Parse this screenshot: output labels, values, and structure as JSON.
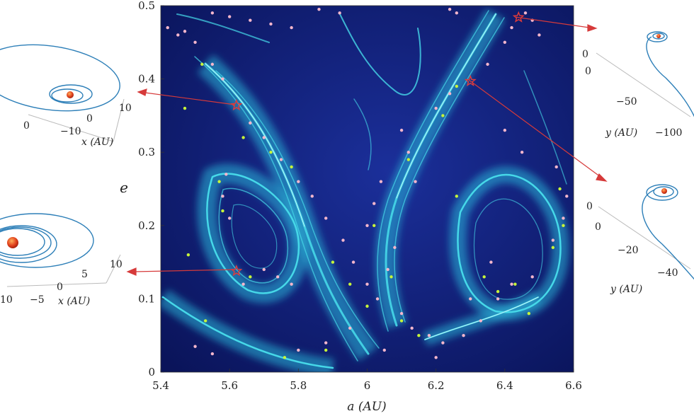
{
  "chart_data": {
    "type": "heatmap",
    "title": "",
    "xlabel": "a (AU)",
    "ylabel": "e",
    "xlim": [
      5.4,
      6.6
    ],
    "ylim": [
      0,
      0.5
    ],
    "xticks": [
      "5.4",
      "5.6",
      "5.8",
      "6",
      "6.2",
      "6.4",
      "6.6"
    ],
    "yticks": [
      "0",
      "0.1",
      "0.2",
      "0.3",
      "0.4",
      "0.5"
    ],
    "colors": {
      "background": "#0d1a6e",
      "structure": "#3fd6e6",
      "highlight": "#c8fbff",
      "pink_points": "#f4b6cc",
      "green_points": "#c6f53a",
      "marker": "#e23b3b",
      "orbit": "#2d7fb8"
    },
    "markers": [
      {
        "a": 5.62,
        "e": 0.364
      },
      {
        "a": 5.62,
        "e": 0.138
      },
      {
        "a": 6.3,
        "e": 0.397
      },
      {
        "a": 6.44,
        "e": 0.484
      }
    ],
    "pink_points": [
      [
        5.42,
        0.47
      ],
      [
        5.45,
        0.46
      ],
      [
        5.47,
        0.465
      ],
      [
        5.5,
        0.45
      ],
      [
        5.55,
        0.42
      ],
      [
        5.58,
        0.4
      ],
      [
        5.66,
        0.34
      ],
      [
        5.7,
        0.32
      ],
      [
        5.75,
        0.29
      ],
      [
        5.8,
        0.26
      ],
      [
        5.84,
        0.24
      ],
      [
        5.88,
        0.21
      ],
      [
        5.93,
        0.18
      ],
      [
        5.96,
        0.15
      ],
      [
        6.0,
        0.12
      ],
      [
        6.03,
        0.1
      ],
      [
        6.06,
        0.14
      ],
      [
        6.08,
        0.17
      ],
      [
        6.1,
        0.08
      ],
      [
        6.13,
        0.06
      ],
      [
        6.18,
        0.05
      ],
      [
        6.22,
        0.04
      ],
      [
        6.28,
        0.05
      ],
      [
        6.33,
        0.07
      ],
      [
        6.38,
        0.1
      ],
      [
        6.42,
        0.12
      ],
      [
        6.48,
        0.13
      ],
      [
        6.54,
        0.18
      ],
      [
        6.57,
        0.21
      ],
      [
        6.58,
        0.24
      ],
      [
        6.55,
        0.28
      ],
      [
        6.1,
        0.33
      ],
      [
        6.12,
        0.3
      ],
      [
        6.14,
        0.26
      ],
      [
        6.2,
        0.36
      ],
      [
        6.24,
        0.38
      ],
      [
        6.35,
        0.42
      ],
      [
        6.4,
        0.45
      ],
      [
        6.42,
        0.47
      ],
      [
        6.46,
        0.49
      ],
      [
        6.48,
        0.48
      ],
      [
        6.5,
        0.46
      ],
      [
        6.24,
        0.495
      ],
      [
        6.26,
        0.49
      ],
      [
        5.55,
        0.49
      ],
      [
        5.6,
        0.485
      ],
      [
        5.66,
        0.48
      ],
      [
        5.72,
        0.475
      ],
      [
        5.78,
        0.47
      ],
      [
        5.86,
        0.495
      ],
      [
        5.92,
        0.49
      ],
      [
        5.7,
        0.14
      ],
      [
        5.74,
        0.13
      ],
      [
        5.78,
        0.12
      ],
      [
        5.6,
        0.21
      ],
      [
        5.58,
        0.24
      ],
      [
        5.59,
        0.27
      ],
      [
        5.64,
        0.12
      ],
      [
        5.5,
        0.035
      ],
      [
        5.55,
        0.025
      ],
      [
        5.8,
        0.03
      ],
      [
        5.88,
        0.04
      ],
      [
        5.95,
        0.06
      ],
      [
        6.05,
        0.03
      ],
      [
        6.2,
        0.02
      ],
      [
        6.3,
        0.1
      ],
      [
        6.36,
        0.15
      ],
      [
        6.0,
        0.2
      ],
      [
        6.02,
        0.23
      ],
      [
        6.04,
        0.26
      ],
      [
        6.4,
        0.33
      ],
      [
        6.45,
        0.3
      ]
    ],
    "green_points": [
      [
        5.47,
        0.36
      ],
      [
        5.52,
        0.42
      ],
      [
        5.64,
        0.32
      ],
      [
        5.72,
        0.3
      ],
      [
        5.78,
        0.28
      ],
      [
        5.9,
        0.15
      ],
      [
        5.95,
        0.12
      ],
      [
        6.0,
        0.09
      ],
      [
        6.07,
        0.13
      ],
      [
        6.1,
        0.07
      ],
      [
        6.15,
        0.05
      ],
      [
        6.02,
        0.2
      ],
      [
        6.12,
        0.29
      ],
      [
        6.22,
        0.35
      ],
      [
        6.26,
        0.39
      ],
      [
        6.34,
        0.13
      ],
      [
        6.38,
        0.11
      ],
      [
        6.43,
        0.12
      ],
      [
        6.54,
        0.17
      ],
      [
        6.57,
        0.2
      ],
      [
        6.56,
        0.25
      ],
      [
        6.47,
        0.08
      ],
      [
        5.57,
        0.26
      ],
      [
        5.58,
        0.22
      ],
      [
        5.66,
        0.13
      ],
      [
        5.88,
        0.03
      ],
      [
        5.76,
        0.02
      ],
      [
        6.26,
        0.24
      ],
      [
        5.48,
        0.16
      ],
      [
        5.53,
        0.07
      ]
    ]
  },
  "insets": {
    "top_left": {
      "x_label": "x (AU)",
      "ticks": [
        "0",
        "−10",
        "0",
        "10"
      ]
    },
    "bottom_left": {
      "x_label": "x (AU)",
      "ticks": [
        "10",
        "−5",
        "0",
        "5",
        "10"
      ]
    },
    "top_right": {
      "y_label": "y (AU)",
      "ticks": [
        "0",
        "0",
        "−50",
        "−100"
      ]
    },
    "bottom_right": {
      "y_label": "y (AU)",
      "ticks": [
        "0",
        "0",
        "−20",
        "−40"
      ]
    }
  }
}
